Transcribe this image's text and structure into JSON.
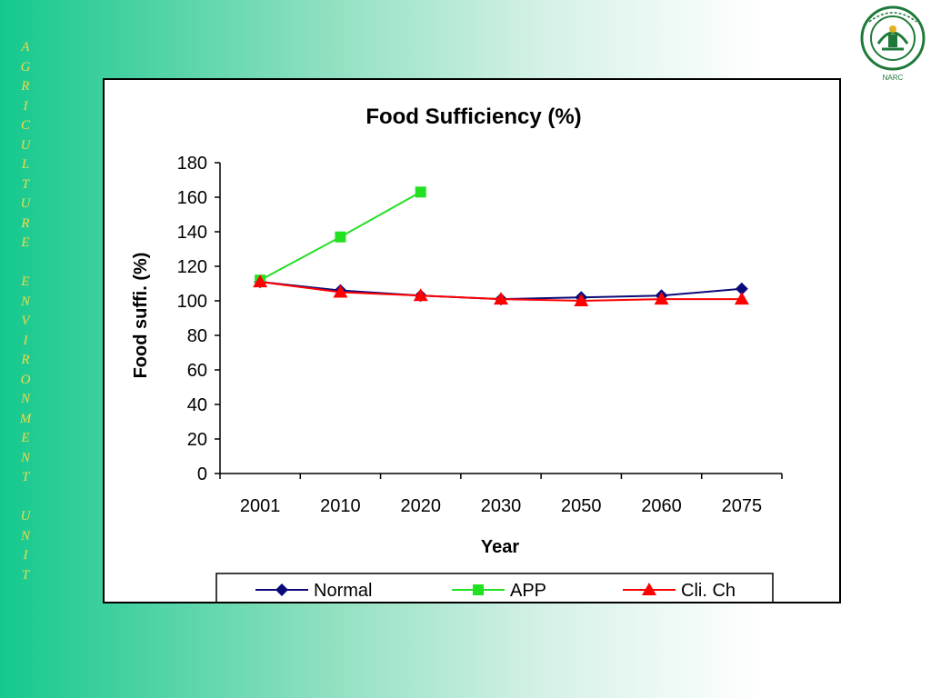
{
  "side_banner": [
    "A",
    "G",
    "R",
    "I",
    "C",
    "U",
    "L",
    "T",
    "U",
    "R",
    "E",
    "",
    "E",
    "N",
    "V",
    "I",
    "R",
    "O",
    "N",
    "M",
    "E",
    "N",
    "T",
    "",
    "U",
    "N",
    "I",
    "T"
  ],
  "logo": {
    "caption": "NARC",
    "icon": "narc-emblem-icon"
  },
  "chart_data": {
    "type": "line",
    "title": "Food Sufficiency (%)",
    "xlabel": "Year",
    "ylabel": "Food suffi. (%)",
    "categories": [
      "2001",
      "2010",
      "2020",
      "2030",
      "2050",
      "2060",
      "2075"
    ],
    "ylim": [
      0,
      180
    ],
    "yticks": [
      0,
      20,
      40,
      60,
      80,
      100,
      120,
      140,
      160,
      180
    ],
    "grid": false,
    "legend_position": "bottom",
    "series": [
      {
        "name": "Normal",
        "color": "#0a0a7a",
        "marker": "diamond",
        "values": [
          111,
          106,
          103,
          101,
          102,
          103,
          107
        ]
      },
      {
        "name": "APP",
        "color": "#22e022",
        "marker": "square",
        "values": [
          112,
          137,
          163,
          null,
          null,
          null,
          null
        ]
      },
      {
        "name": "Cli. Ch",
        "color": "#ff0000",
        "marker": "triangle",
        "values": [
          111,
          105,
          103,
          101,
          100,
          101,
          101
        ]
      }
    ]
  }
}
